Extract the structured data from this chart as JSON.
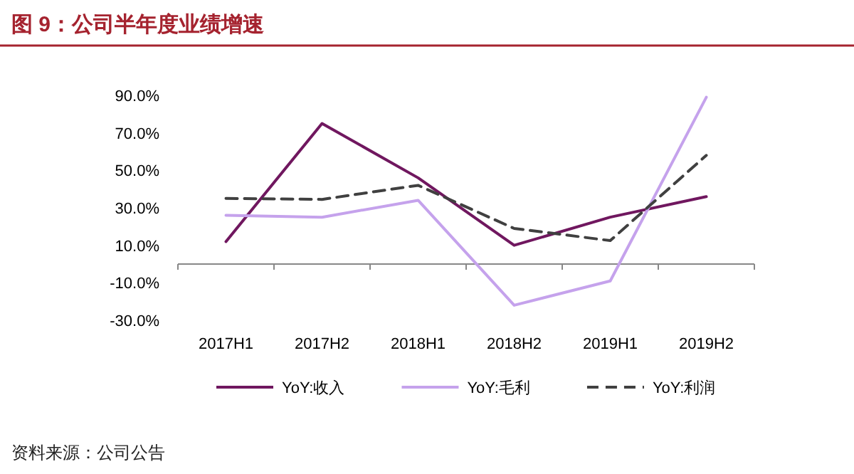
{
  "chart_data": {
    "type": "line",
    "title": "图 9：公司半年度业绩增速",
    "categories": [
      "2017H1",
      "2017H2",
      "2018H1",
      "2018H2",
      "2019H1",
      "2019H2"
    ],
    "series": [
      {
        "name": "YoY:收入",
        "color": "#70175f",
        "values": [
          12,
          75,
          46,
          10,
          25,
          36
        ],
        "line_style": "solid"
      },
      {
        "name": "YoY:毛利",
        "color": "#c5a2ec",
        "values": [
          26,
          25,
          34,
          -22,
          -9,
          89
        ],
        "line_style": "solid"
      },
      {
        "name": "YoY:利润",
        "color": "#404040",
        "values": [
          35,
          34.5,
          42,
          19,
          12.5,
          58
        ],
        "line_style": "dashed"
      }
    ],
    "ylim": [
      -30,
      90
    ],
    "yticks": [
      {
        "value": -30,
        "label": "-30.0%"
      },
      {
        "value": -10,
        "label": "-10.0%"
      },
      {
        "value": 10,
        "label": "10.0%"
      },
      {
        "value": 30,
        "label": "30.0%"
      },
      {
        "value": 50,
        "label": "50.0%"
      },
      {
        "value": 70,
        "label": "70.0%"
      },
      {
        "value": 90,
        "label": "90.0%"
      }
    ],
    "grid": false,
    "legend": "bottom",
    "marker": "none",
    "annotations": [
      "资料来源：公司公告"
    ]
  }
}
